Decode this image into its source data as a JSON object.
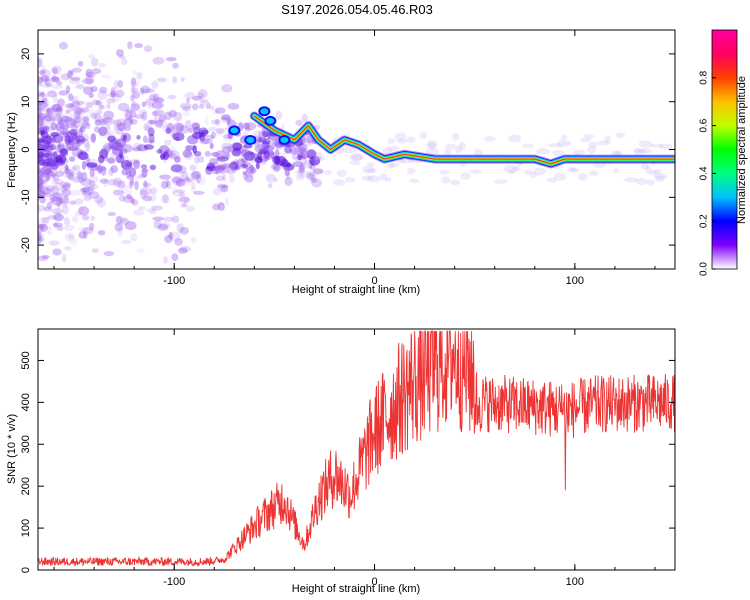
{
  "title": "S197.2026.054.05.46.R03",
  "chart_data": [
    {
      "type": "heatmap",
      "name": "spectrogram",
      "xlabel": "Height of straight line (km)",
      "ylabel": "Frequency (Hz)",
      "xlim": [
        -168,
        150
      ],
      "ylim": [
        -25,
        25
      ],
      "xticks": [
        -100,
        0,
        100
      ],
      "yticks": [
        -20,
        -10,
        0,
        10,
        20
      ],
      "ridge": {
        "description_points": [
          {
            "x": -60,
            "y": 7
          },
          {
            "x": -50,
            "y": 4
          },
          {
            "x": -40,
            "y": 2
          },
          {
            "x": -33,
            "y": 5
          },
          {
            "x": -28,
            "y": 2
          },
          {
            "x": -22,
            "y": 0
          },
          {
            "x": -15,
            "y": 2
          },
          {
            "x": -8,
            "y": 1
          },
          {
            "x": 0,
            "y": -1
          },
          {
            "x": 5,
            "y": -2
          },
          {
            "x": 15,
            "y": -1
          },
          {
            "x": 30,
            "y": -2
          },
          {
            "x": 60,
            "y": -2
          },
          {
            "x": 80,
            "y": -2
          },
          {
            "x": 88,
            "y": -3
          },
          {
            "x": 95,
            "y": -2
          },
          {
            "x": 150,
            "y": -2
          }
        ]
      },
      "colorbar": {
        "label": "Normalized spectral amplitude",
        "range": [
          0,
          1
        ],
        "ticks": [
          "0.0",
          "0.2",
          "0.4",
          "0.6",
          "0.8"
        ],
        "tick_values": [
          0.0,
          0.2,
          0.4,
          0.6,
          0.8
        ],
        "colors": [
          "#ffffff",
          "#8000ff",
          "#0000ff",
          "#00c0ff",
          "#00ff80",
          "#00ff00",
          "#c0ff00",
          "#ffc000",
          "#ff4000",
          "#ff0060",
          "#ff00a0"
        ]
      }
    },
    {
      "type": "line",
      "name": "snr",
      "xlabel": "Height of straight line (km)",
      "ylabel": "SNR (10 * v/v)",
      "xlim": [
        -168,
        150
      ],
      "ylim": [
        0,
        575
      ],
      "xticks": [
        -100,
        0,
        100
      ],
      "yticks": [
        0,
        100,
        200,
        300,
        400,
        500
      ],
      "color": "#ee3333",
      "envelope": [
        {
          "x": -168,
          "y": 20
        },
        {
          "x": -85,
          "y": 20
        },
        {
          "x": -75,
          "y": 25
        },
        {
          "x": -65,
          "y": 80
        },
        {
          "x": -55,
          "y": 130
        },
        {
          "x": -45,
          "y": 170
        },
        {
          "x": -40,
          "y": 110
        },
        {
          "x": -35,
          "y": 60
        },
        {
          "x": -28,
          "y": 170
        },
        {
          "x": -20,
          "y": 230
        },
        {
          "x": -12,
          "y": 180
        },
        {
          "x": -5,
          "y": 270
        },
        {
          "x": 0,
          "y": 330
        },
        {
          "x": 8,
          "y": 380
        },
        {
          "x": 18,
          "y": 440
        },
        {
          "x": 30,
          "y": 490
        },
        {
          "x": 40,
          "y": 520
        },
        {
          "x": 50,
          "y": 460
        },
        {
          "x": 52,
          "y": 400
        },
        {
          "x": 80,
          "y": 390
        },
        {
          "x": 96,
          "y": 380
        },
        {
          "x": 110,
          "y": 395
        },
        {
          "x": 150,
          "y": 400
        }
      ]
    }
  ]
}
